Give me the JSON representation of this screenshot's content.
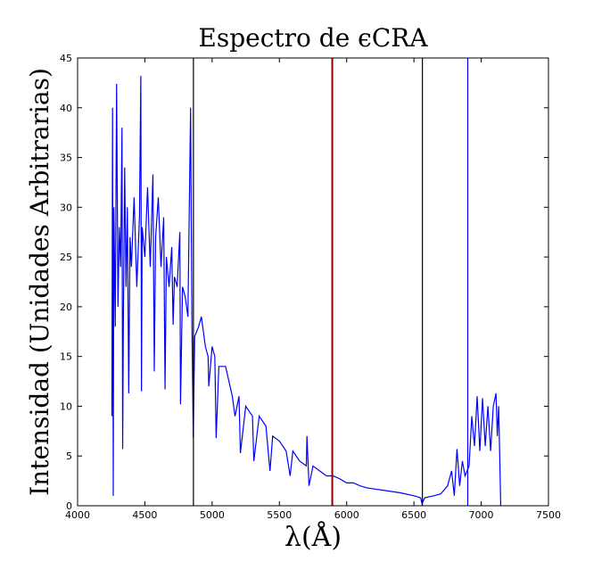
{
  "chart_data": {
    "type": "line",
    "title": "Espectro de ϵCRA",
    "xlabel": "λ(Å)",
    "ylabel": "Intensidad (Unidades Arbitrarias)",
    "color": "#0000ff",
    "x": [
      4255,
      4260,
      4265,
      4270,
      4280,
      4290,
      4300,
      4310,
      4320,
      4330,
      4335,
      4340,
      4350,
      4360,
      4370,
      4380,
      4390,
      4400,
      4420,
      4440,
      4460,
      4470,
      4475,
      4480,
      4500,
      4520,
      4540,
      4560,
      4570,
      4580,
      4600,
      4620,
      4640,
      4650,
      4660,
      4680,
      4700,
      4710,
      4720,
      4740,
      4760,
      4765,
      4780,
      4800,
      4820,
      4840,
      4850,
      4860,
      4870,
      4900,
      4920,
      4950,
      4970,
      4975,
      5000,
      5020,
      5030,
      5050,
      5100,
      5150,
      5170,
      5200,
      5210,
      5250,
      5300,
      5310,
      5350,
      5400,
      5430,
      5450,
      5500,
      5550,
      5580,
      5600,
      5650,
      5700,
      5705,
      5720,
      5750,
      5800,
      5850,
      5900,
      5950,
      6000,
      6050,
      6100,
      6150,
      6200,
      6300,
      6400,
      6500,
      6550,
      6560,
      6580,
      6650,
      6700,
      6750,
      6780,
      6800,
      6820,
      6840,
      6860,
      6880,
      6910,
      6930,
      6950,
      6970,
      6990,
      7010,
      7030,
      7050,
      7070,
      7090,
      7110,
      7120,
      7130,
      7140,
      7145
    ],
    "values": [
      9,
      40,
      1,
      30,
      18,
      42.4,
      20,
      28,
      24,
      38,
      5.7,
      18,
      34,
      22,
      30,
      11.3,
      27,
      24,
      31,
      22,
      29,
      43.2,
      11.5,
      28,
      25,
      32,
      24,
      33.3,
      13.5,
      27,
      31,
      24,
      29,
      11.7,
      25,
      22,
      26,
      18.2,
      23,
      22,
      27.5,
      10.2,
      22,
      21,
      19,
      40,
      18,
      6.8,
      17,
      18,
      19,
      16,
      15,
      12,
      16,
      15,
      6.8,
      14,
      14,
      11,
      9,
      11,
      5.3,
      10,
      9,
      4.5,
      9,
      8,
      3.5,
      7,
      6.5,
      5.5,
      3,
      5.5,
      4.5,
      4,
      7,
      2,
      4,
      3.5,
      3,
      3,
      2.7,
      2.3,
      2.3,
      2,
      1.8,
      1.7,
      1.5,
      1.3,
      1,
      0.8,
      0.2,
      0.8,
      1,
      1.2,
      2,
      3.5,
      1,
      5.7,
      2,
      4.5,
      3,
      4,
      9,
      6,
      11,
      5.5,
      10.8,
      6,
      10,
      5.5,
      10,
      11.3,
      7,
      10,
      3.5,
      0
    ],
    "vlines": [
      {
        "x": 4861,
        "color": "#000000"
      },
      {
        "x": 5893,
        "color": "#8b0000"
      },
      {
        "x": 6563,
        "color": "#000000"
      },
      {
        "x": 6900,
        "color": "#0000ff"
      }
    ],
    "xlim": [
      4000,
      7500
    ],
    "xticks": [
      4000,
      4500,
      5000,
      5500,
      6000,
      6500,
      7000,
      7500
    ],
    "ylim": [
      0,
      45
    ],
    "yticks": [
      0,
      5,
      10,
      15,
      20,
      25,
      30,
      35,
      40,
      45
    ]
  }
}
